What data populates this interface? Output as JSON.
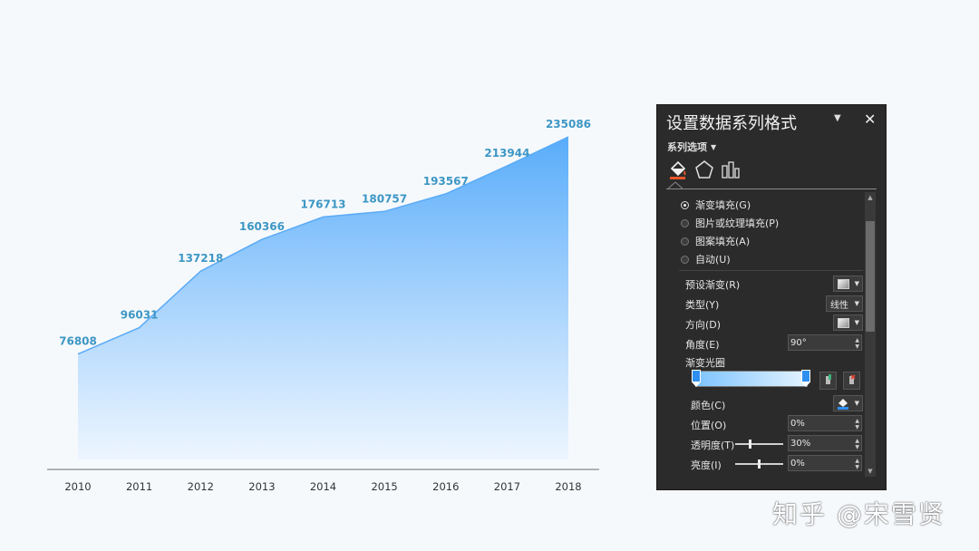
{
  "chart_data": {
    "type": "area",
    "categories": [
      "2010",
      "2011",
      "2012",
      "2013",
      "2014",
      "2015",
      "2016",
      "2017",
      "2018"
    ],
    "values": [
      76808,
      96031,
      137218,
      160366,
      176713,
      180757,
      193567,
      213944,
      235086
    ],
    "data_labels": [
      "76808",
      "96031",
      "137218",
      "160366",
      "176713",
      "180757",
      "193567",
      "213944",
      "235086"
    ],
    "title": "",
    "xlabel": "",
    "ylabel": "",
    "ylim": [
      0,
      250000
    ],
    "grid": false,
    "legend": "none",
    "colors": {
      "fill_top": "#58acfa",
      "fill_bottom": "#ecf5ff",
      "line": "#5aabf6",
      "label": "#3d97c4",
      "axis": "#888888"
    }
  },
  "pane": {
    "title": "设置数据系列格式",
    "series_options": "系列选项",
    "tabs": [
      "fill-line-icon",
      "effects-pentagon-icon",
      "series-options-bars-icon"
    ],
    "fill_options": [
      {
        "label": "渐变填充(G)",
        "selected": true
      },
      {
        "label": "图片或纹理填充(P)",
        "selected": false
      },
      {
        "label": "图案填充(A)",
        "selected": false
      },
      {
        "label": "自动(U)",
        "selected": false
      }
    ],
    "preset_gradient": "预设渐变(R)",
    "type_label": "类型(Y)",
    "type_value": "线性",
    "direction_label": "方向(D)",
    "angle_label": "角度(E)",
    "angle_value": "90°",
    "gradient_stops_label": "渐变光圈",
    "color_label": "颜色(C)",
    "position_label": "位置(O)",
    "position_value": "0%",
    "transparency_label": "透明度(T)",
    "transparency_value": "30%",
    "brightness_label": "亮度(I)",
    "brightness_value": "0%",
    "transparency_level": 0.3,
    "brightness_level": 0.5
  },
  "watermark": "知乎 @宋雪贤"
}
